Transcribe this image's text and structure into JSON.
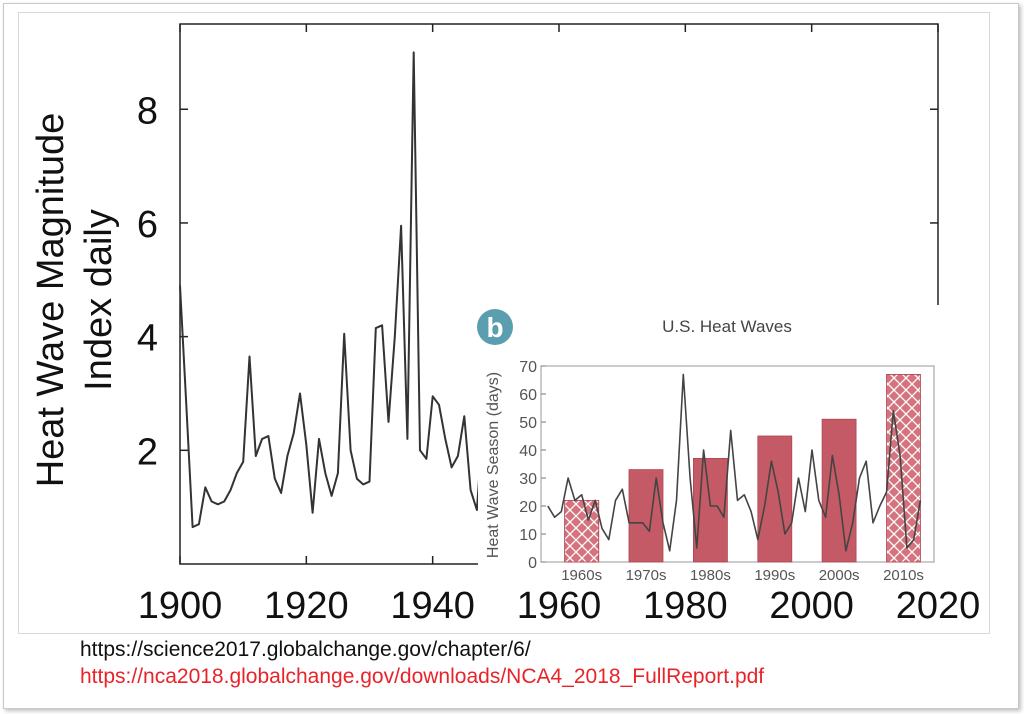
{
  "chart_data": [
    {
      "type": "line",
      "title": "",
      "ylabel_line1": "Heat Wave Magnitude",
      "ylabel_line2": "Index daily",
      "xlabel": "",
      "xlim": [
        1900,
        2020
      ],
      "ylim": [
        0,
        9.5
      ],
      "xticks": [
        1900,
        1920,
        1940,
        1960,
        1980,
        2000,
        2020
      ],
      "yticks": [
        2,
        4,
        6,
        8
      ],
      "series": [
        {
          "name": "Heat Wave Magnitude Index daily",
          "x": [
            1900,
            1901,
            1902,
            1903,
            1904,
            1905,
            1906,
            1907,
            1908,
            1909,
            1910,
            1911,
            1912,
            1913,
            1914,
            1915,
            1916,
            1917,
            1918,
            1919,
            1920,
            1921,
            1922,
            1923,
            1924,
            1925,
            1926,
            1927,
            1928,
            1929,
            1930,
            1931,
            1932,
            1933,
            1934,
            1935,
            1936,
            1937,
            1938,
            1939,
            1940,
            1941,
            1942,
            1943,
            1944,
            1945,
            1946,
            1947,
            1948,
            1949,
            1950,
            1951,
            1952,
            1953,
            1954,
            1955
          ],
          "y": [
            4.9,
            2.8,
            0.65,
            0.7,
            1.35,
            1.1,
            1.05,
            1.1,
            1.3,
            1.6,
            1.8,
            3.65,
            1.9,
            2.2,
            2.25,
            1.5,
            1.25,
            1.9,
            2.3,
            3.0,
            2.1,
            0.9,
            2.2,
            1.6,
            1.2,
            1.6,
            4.05,
            2.0,
            1.5,
            1.4,
            1.45,
            4.15,
            4.2,
            2.5,
            4.0,
            5.95,
            2.2,
            9.0,
            2.0,
            1.85,
            2.95,
            2.8,
            2.2,
            1.7,
            1.9,
            2.6,
            1.3,
            0.95,
            2.55,
            1.1,
            2.2,
            1.7,
            2.8,
            1.4,
            3.35,
            3.4
          ]
        }
      ]
    },
    {
      "type": "bar",
      "badge": "b",
      "title": "U.S. Heat Waves",
      "ylabel": "Heat Wave Season (days)",
      "xlabel": "",
      "ylim": [
        0,
        70
      ],
      "yticks": [
        0,
        10,
        20,
        30,
        40,
        50,
        60,
        70
      ],
      "categories": [
        "1960s",
        "1970s",
        "1980s",
        "1990s",
        "2000s",
        "2010s"
      ],
      "values": [
        22,
        33,
        37,
        45,
        51,
        67
      ],
      "line_series": {
        "name": "Annual heat wave season length",
        "x": [
          1961,
          1962,
          1963,
          1964,
          1965,
          1966,
          1967,
          1968,
          1969,
          1970,
          1971,
          1972,
          1973,
          1974,
          1975,
          1976,
          1977,
          1978,
          1979,
          1980,
          1981,
          1982,
          1983,
          1984,
          1985,
          1986,
          1987,
          1988,
          1989,
          1990,
          1991,
          1992,
          1993,
          1994,
          1995,
          1996,
          1997,
          1998,
          1999,
          2000,
          2001,
          2002,
          2003,
          2004,
          2005,
          2006,
          2007,
          2008,
          2009,
          2010,
          2011,
          2012,
          2013,
          2014,
          2015,
          2016
        ],
        "y": [
          20,
          16,
          18,
          30,
          22,
          24,
          15,
          22,
          12,
          8,
          22,
          26,
          14,
          14,
          14,
          11,
          30,
          14,
          4,
          22,
          67,
          30,
          5,
          40,
          20,
          20,
          16,
          47,
          22,
          24,
          18,
          8,
          20,
          36,
          25,
          10,
          14,
          30,
          18,
          40,
          22,
          16,
          38,
          24,
          4,
          14,
          30,
          36,
          14,
          20,
          25,
          54,
          38,
          5,
          8,
          22
        ]
      }
    }
  ],
  "footer": {
    "link1": "https://science2017.globalchange.gov/chapter/6/",
    "link2": "https://nca2018.globalchange.gov/downloads/NCA4_2018_FullReport.pdf"
  },
  "colors": {
    "bar": "#c45a65",
    "bar_hatched": "#d4737d",
    "line": "#333333",
    "badge": "#5b9eb0",
    "link2": "#e8242b"
  }
}
